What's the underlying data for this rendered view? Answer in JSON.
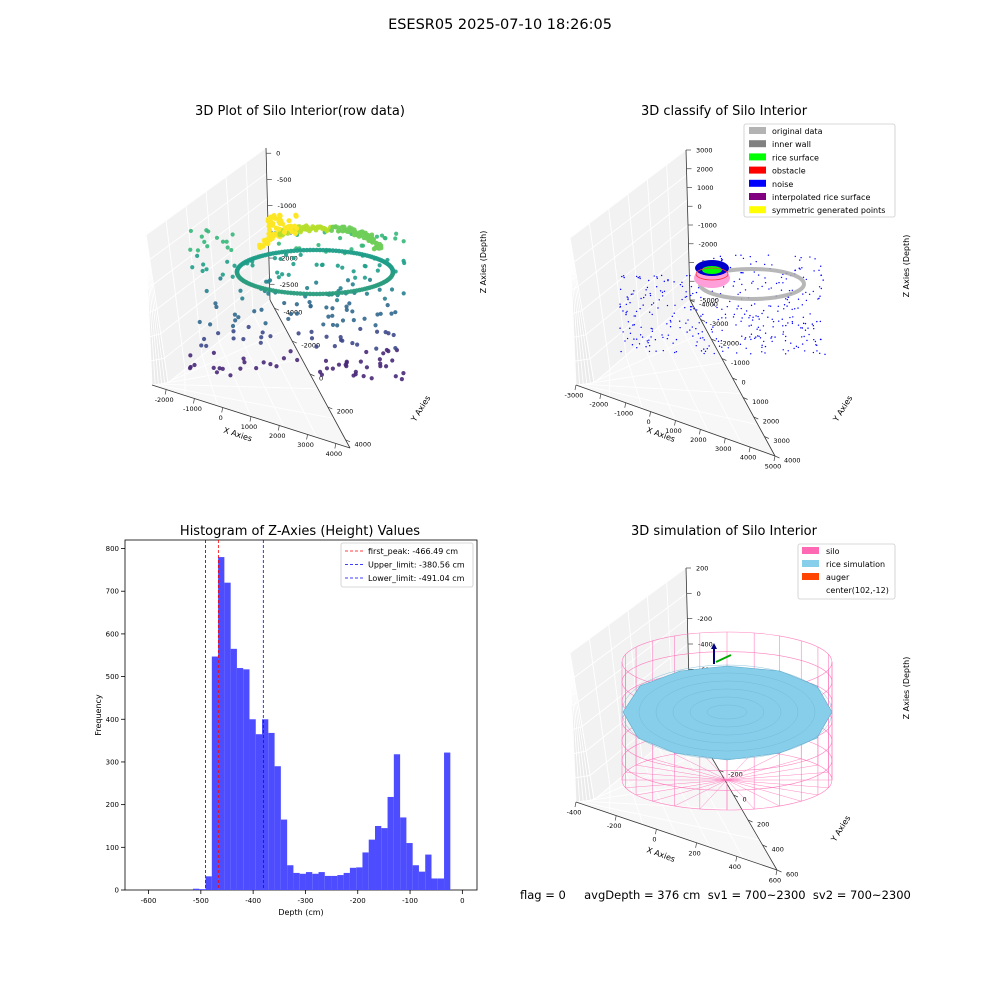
{
  "figure": {
    "suptitle": "ESESR05 2025-07-10 18:26:05",
    "status_line": "flag = 0     avgDepth = 376 cm  sv1 = 700~2300  sv2 = 700~2300"
  },
  "chart_data": [
    {
      "type": "scatter",
      "projection": "3d",
      "title": "3D Plot of Silo Interior(row data)",
      "xlabel": "X Axies",
      "ylabel": "Y Axies",
      "zlabel": "Z Axies (Depth)",
      "xticks": [
        -2000,
        -1000,
        0,
        1000,
        2000,
        3000,
        4000
      ],
      "yticks": [
        -4000,
        -2000,
        0,
        2000,
        4000
      ],
      "zticks": [
        -2500,
        -2000,
        -1500,
        -1000,
        -500,
        0
      ],
      "xlim": [
        -2500,
        4500
      ],
      "ylim": [
        -4500,
        4500
      ],
      "zlim": [
        -2800,
        100
      ],
      "colormap": "viridis (colored by depth)",
      "grid": true
    },
    {
      "type": "scatter",
      "projection": "3d",
      "title": "3D classify of Silo Interior",
      "xlabel": "X Axies",
      "ylabel": "Y Axies",
      "zlabel": "Z Axies (Depth)",
      "xticks": [
        -3000,
        -2000,
        -1000,
        0,
        1000,
        2000,
        3000,
        4000,
        5000
      ],
      "yticks": [
        -4000,
        -3000,
        -2000,
        -1000,
        0,
        1000,
        2000,
        3000,
        4000
      ],
      "zticks": [
        -5000,
        -4000,
        -3000,
        -2000,
        -1000,
        0,
        1000,
        2000,
        3000
      ],
      "legend_position": "upper right",
      "legend": [
        {
          "label": "original data",
          "color": "#b3b3b3"
        },
        {
          "label": "inner wall",
          "color": "#808080"
        },
        {
          "label": "rice surface",
          "color": "#00ff00"
        },
        {
          "label": "obstacle",
          "color": "#ff0000"
        },
        {
          "label": "noise",
          "color": "#0000ff"
        },
        {
          "label": "interpolated rice surface",
          "color": "#800080"
        },
        {
          "label": "symmetric generated points",
          "color": "#ffff00"
        }
      ],
      "grid": true
    },
    {
      "type": "bar",
      "subtype": "histogram",
      "title": "Histogram of Z-Axies (Height) Values",
      "xlabel": "Depth (cm)",
      "ylabel": "Frequency",
      "xlim": [
        -645,
        28
      ],
      "ylim": [
        0,
        820
      ],
      "xticks": [
        -600,
        -500,
        -400,
        -300,
        -200,
        -100,
        0
      ],
      "yticks": [
        0,
        100,
        200,
        300,
        400,
        500,
        600,
        700,
        800
      ],
      "bar_color": "#4d4dff",
      "bins": [
        {
          "x0": -515,
          "x1": -503,
          "value": 3
        },
        {
          "x0": -503,
          "x1": -491,
          "value": 2
        },
        {
          "x0": -491,
          "x1": -479,
          "value": 32
        },
        {
          "x0": -479,
          "x1": -467,
          "value": 547
        },
        {
          "x0": -467,
          "x1": -455,
          "value": 780
        },
        {
          "x0": -455,
          "x1": -443,
          "value": 720
        },
        {
          "x0": -443,
          "x1": -431,
          "value": 565
        },
        {
          "x0": -431,
          "x1": -419,
          "value": 520
        },
        {
          "x0": -419,
          "x1": -407,
          "value": 517
        },
        {
          "x0": -407,
          "x1": -395,
          "value": 400
        },
        {
          "x0": -395,
          "x1": -383,
          "value": 365
        },
        {
          "x0": -383,
          "x1": -371,
          "value": 400
        },
        {
          "x0": -371,
          "x1": -359,
          "value": 368
        },
        {
          "x0": -359,
          "x1": -347,
          "value": 290
        },
        {
          "x0": -347,
          "x1": -335,
          "value": 165
        },
        {
          "x0": -335,
          "x1": -323,
          "value": 58
        },
        {
          "x0": -323,
          "x1": -311,
          "value": 40
        },
        {
          "x0": -311,
          "x1": -299,
          "value": 38
        },
        {
          "x0": -299,
          "x1": -287,
          "value": 42
        },
        {
          "x0": -287,
          "x1": -275,
          "value": 38
        },
        {
          "x0": -275,
          "x1": -263,
          "value": 42
        },
        {
          "x0": -263,
          "x1": -251,
          "value": 33
        },
        {
          "x0": -251,
          "x1": -239,
          "value": 33
        },
        {
          "x0": -239,
          "x1": -227,
          "value": 35
        },
        {
          "x0": -227,
          "x1": -215,
          "value": 40
        },
        {
          "x0": -215,
          "x1": -203,
          "value": 52
        },
        {
          "x0": -203,
          "x1": -191,
          "value": 53
        },
        {
          "x0": -191,
          "x1": -179,
          "value": 88
        },
        {
          "x0": -179,
          "x1": -167,
          "value": 118
        },
        {
          "x0": -167,
          "x1": -155,
          "value": 150
        },
        {
          "x0": -155,
          "x1": -143,
          "value": 145
        },
        {
          "x0": -143,
          "x1": -131,
          "value": 218
        },
        {
          "x0": -131,
          "x1": -119,
          "value": 318
        },
        {
          "x0": -119,
          "x1": -107,
          "value": 170
        },
        {
          "x0": -107,
          "x1": -95,
          "value": 110
        },
        {
          "x0": -95,
          "x1": -83,
          "value": 58
        },
        {
          "x0": -83,
          "x1": -71,
          "value": 43
        },
        {
          "x0": -71,
          "x1": -59,
          "value": 83
        },
        {
          "x0": -59,
          "x1": -47,
          "value": 27
        },
        {
          "x0": -47,
          "x1": -35,
          "value": 27
        },
        {
          "x0": -35,
          "x1": -23,
          "value": 322
        }
      ],
      "vlines": [
        {
          "x": -466.49,
          "label": "first_peak: -466.49 cm",
          "color": "#ff0000"
        },
        {
          "x": -380.56,
          "label": "Upper_limit: -380.56 cm",
          "color": "#0000ff"
        },
        {
          "x": -491.04,
          "label": "Lower_limit: -491.04 cm",
          "color": "#0000ff"
        }
      ],
      "legend_position": "upper right"
    },
    {
      "type": "scatter",
      "subtype": "3d wireframe simulation",
      "projection": "3d",
      "title": "3D simulation of Silo Interior",
      "xlabel": "X Axies",
      "ylabel": "Y Axies",
      "zlabel": "Z Axies (Depth)",
      "xticks": [
        -400,
        -200,
        0,
        200,
        400,
        600
      ],
      "yticks": [
        -600,
        -400,
        -200,
        0,
        200,
        400,
        600
      ],
      "zticks": [
        -1000,
        -800,
        -600,
        -400,
        -200,
        0,
        200
      ],
      "legend_position": "upper right",
      "legend": [
        {
          "label": "silo",
          "color": "#ff69b4"
        },
        {
          "label": "rice simulation",
          "color": "#87ceeb"
        },
        {
          "label": "auger",
          "color": "#ff4500"
        },
        {
          "label": "center(102,-12)",
          "color": ""
        }
      ],
      "grid": true
    }
  ]
}
